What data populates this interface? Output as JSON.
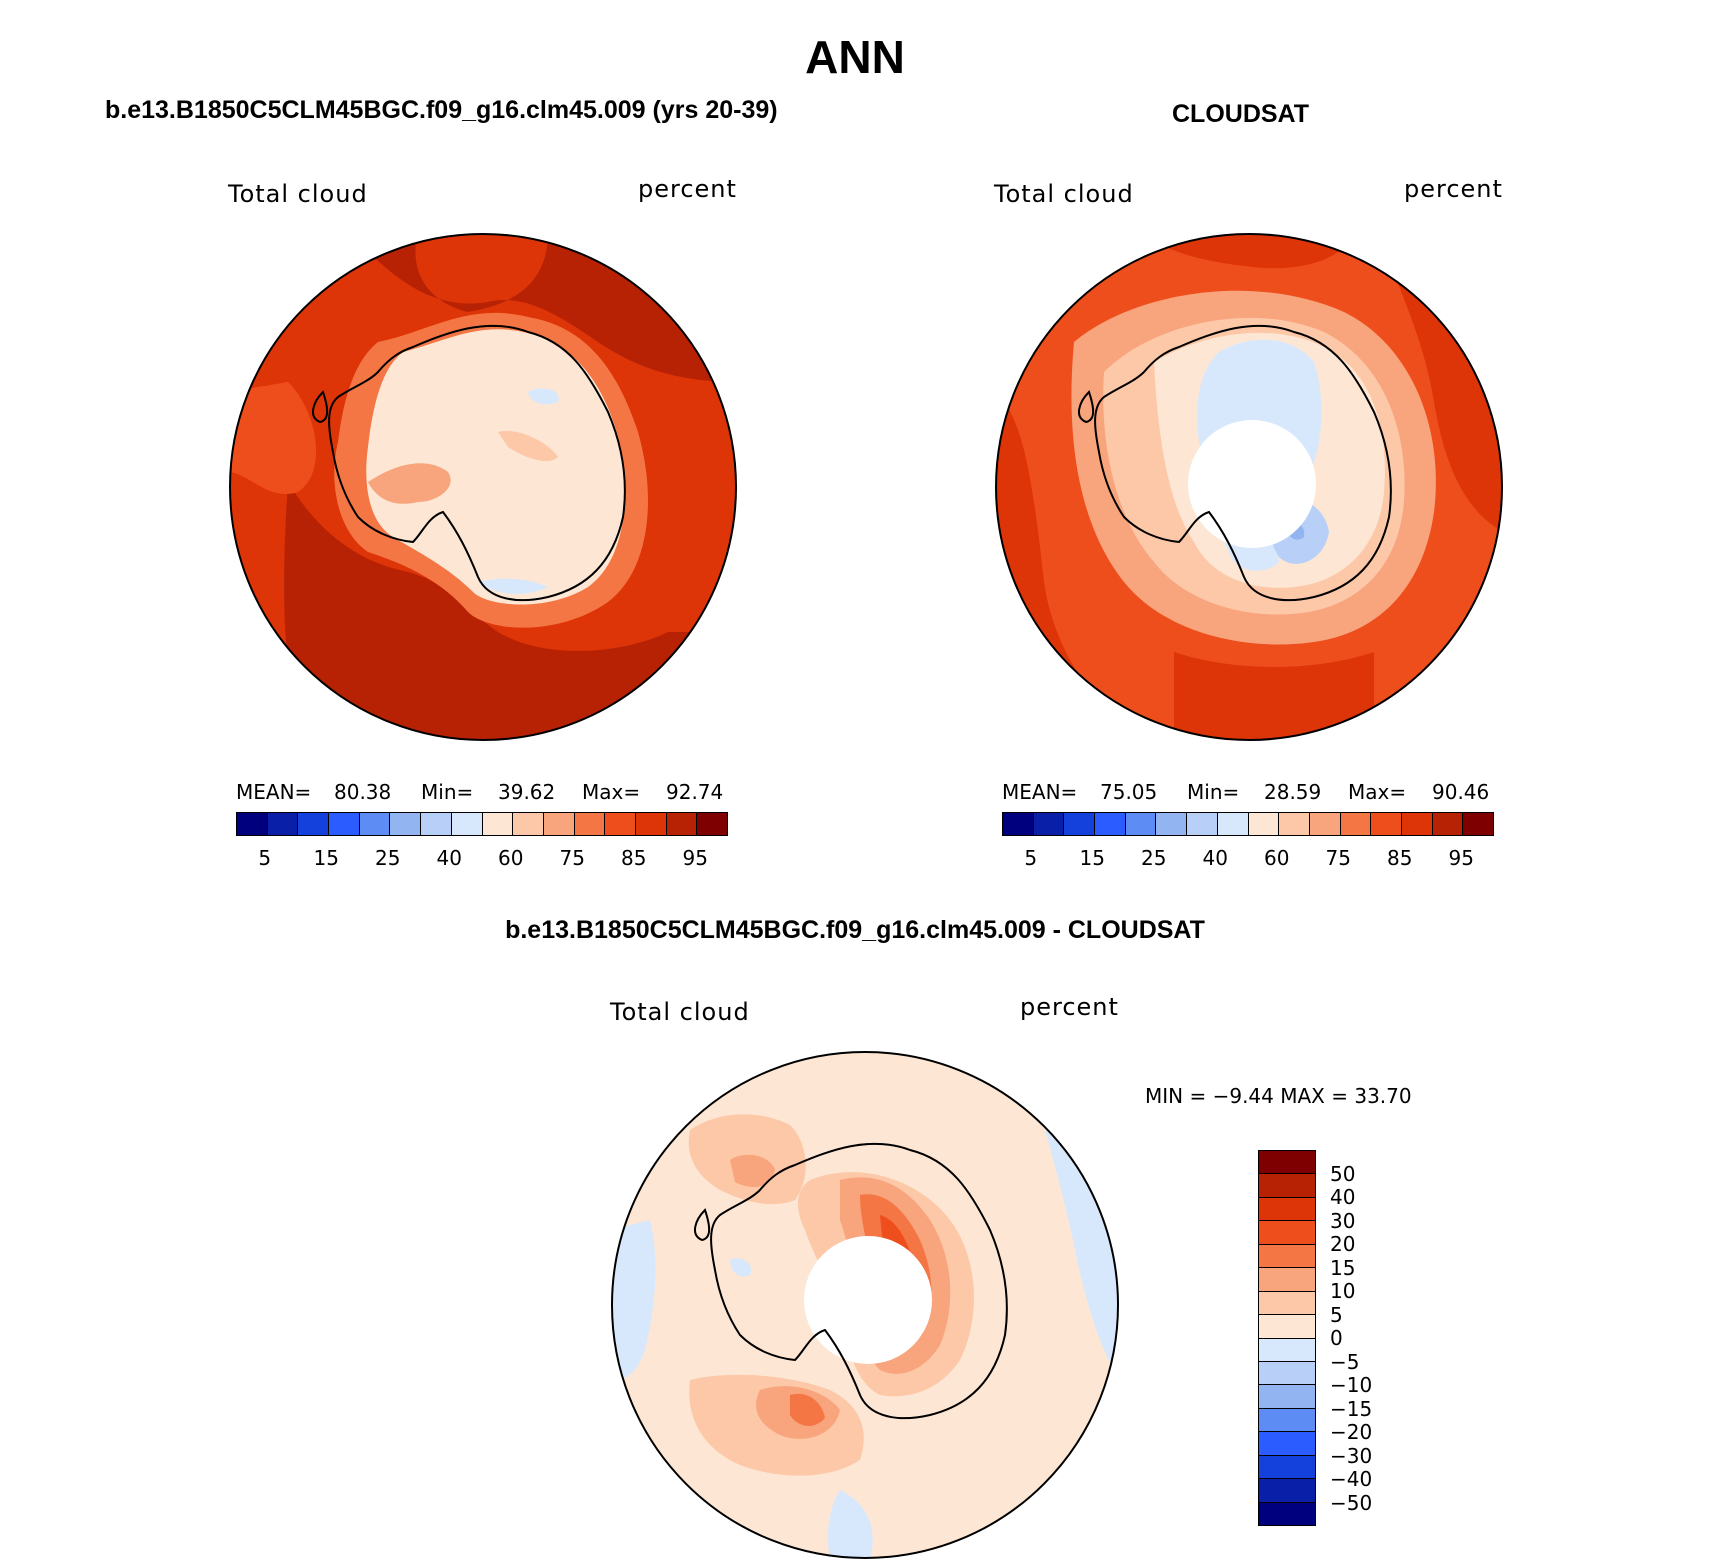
{
  "title": "ANN",
  "colors": {
    "abs_scale": [
      "#00007f",
      "#0a1fa8",
      "#1440dc",
      "#2a5cff",
      "#5c8cf4",
      "#92b4f0",
      "#b8d0f8",
      "#d8e8fc",
      "#fde7d4",
      "#fcc8a8",
      "#f8a47c",
      "#f47644",
      "#ee4e1c",
      "#dd3408",
      "#b82204",
      "#7e0000"
    ],
    "diff_scale": [
      "#7e0000",
      "#b82204",
      "#dd3408",
      "#ee4e1c",
      "#f47644",
      "#f8a47c",
      "#fcc8a8",
      "#fde7d4",
      "#d8e8fc",
      "#b8d0f8",
      "#92b4f0",
      "#5c8cf4",
      "#2a5cff",
      "#1440dc",
      "#0a1fa8",
      "#00007f"
    ]
  },
  "panels": {
    "model": {
      "title": "b.e13.B1850C5CLM45BGC.f09_g16.clm45.009 (yrs 20-39)",
      "left_label": "Total cloud",
      "right_label": "percent",
      "mean_label": "MEAN=",
      "mean_value": "80.38",
      "min_label": "Min=",
      "min_value": "39.62",
      "max_label": "Max=",
      "max_value": "92.74",
      "ticks": [
        "5",
        "15",
        "25",
        "40",
        "60",
        "75",
        "85",
        "95"
      ]
    },
    "obs": {
      "title": "CLOUDSAT",
      "left_label": "Total cloud",
      "right_label": "percent",
      "mean_label": "MEAN=",
      "mean_value": "75.05",
      "min_label": "Min=",
      "min_value": "28.59",
      "max_label": "Max=",
      "max_value": "90.46",
      "ticks": [
        "5",
        "15",
        "25",
        "40",
        "60",
        "75",
        "85",
        "95"
      ]
    },
    "diff": {
      "title": "b.e13.B1850C5CLM45BGC.f09_g16.clm45.009 - CLOUDSAT",
      "left_label": "Total cloud",
      "right_label": "percent",
      "minmax_text": "MIN =   −9.44  MAX =   33.70",
      "ticks": [
        "50",
        "40",
        "30",
        "20",
        "15",
        "10",
        "5",
        "0",
        "−5",
        "−10",
        "−15",
        "−20",
        "−30",
        "−40",
        "−50"
      ]
    }
  }
}
